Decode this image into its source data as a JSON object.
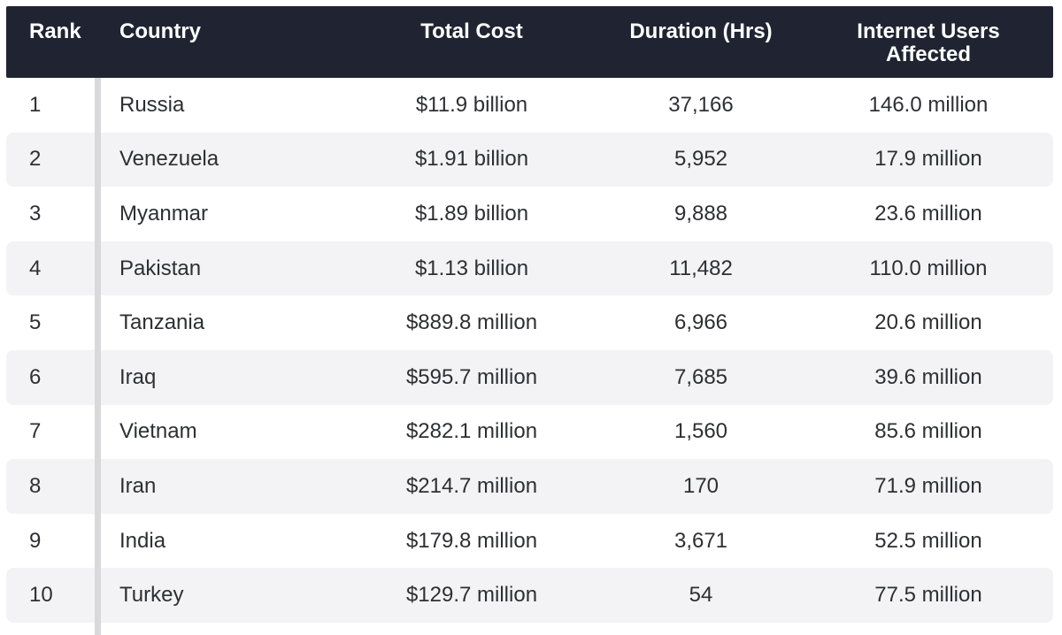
{
  "table": {
    "columns": [
      {
        "key": "rank",
        "label": "Rank"
      },
      {
        "key": "country",
        "label": "Country"
      },
      {
        "key": "total_cost",
        "label": "Total Cost"
      },
      {
        "key": "duration_hrs",
        "label": "Duration (Hrs)"
      },
      {
        "key": "users_affected",
        "label": "Internet Users Affected"
      }
    ],
    "rows": [
      {
        "rank": "1",
        "country": "Russia",
        "total_cost": "$11.9 billion",
        "duration_hrs": "37,166",
        "users_affected": "146.0 million"
      },
      {
        "rank": "2",
        "country": "Venezuela",
        "total_cost": "$1.91 billion",
        "duration_hrs": "5,952",
        "users_affected": "17.9 million"
      },
      {
        "rank": "3",
        "country": "Myanmar",
        "total_cost": "$1.89 billion",
        "duration_hrs": "9,888",
        "users_affected": "23.6 million"
      },
      {
        "rank": "4",
        "country": "Pakistan",
        "total_cost": "$1.13 billion",
        "duration_hrs": "11,482",
        "users_affected": "110.0 million"
      },
      {
        "rank": "5",
        "country": "Tanzania",
        "total_cost": "$889.8 million",
        "duration_hrs": "6,966",
        "users_affected": "20.6 million"
      },
      {
        "rank": "6",
        "country": "Iraq",
        "total_cost": "$595.7 million",
        "duration_hrs": "7,685",
        "users_affected": "39.6 million"
      },
      {
        "rank": "7",
        "country": "Vietnam",
        "total_cost": "$282.1 million",
        "duration_hrs": "1,560",
        "users_affected": "85.6 million"
      },
      {
        "rank": "8",
        "country": "Iran",
        "total_cost": "$214.7 million",
        "duration_hrs": "170",
        "users_affected": "71.9 million"
      },
      {
        "rank": "9",
        "country": "India",
        "total_cost": "$179.8 million",
        "duration_hrs": "3,671",
        "users_affected": "52.5 million"
      },
      {
        "rank": "10",
        "country": "Turkey",
        "total_cost": "$129.7 million",
        "duration_hrs": "54",
        "users_affected": "77.5 million"
      }
    ]
  },
  "colors": {
    "header_bg": "#202432",
    "header_text": "#ffffff",
    "row_alt_bg": "#f3f3f5",
    "row_text": "#2e2f34",
    "divider": "#d9d9db"
  }
}
